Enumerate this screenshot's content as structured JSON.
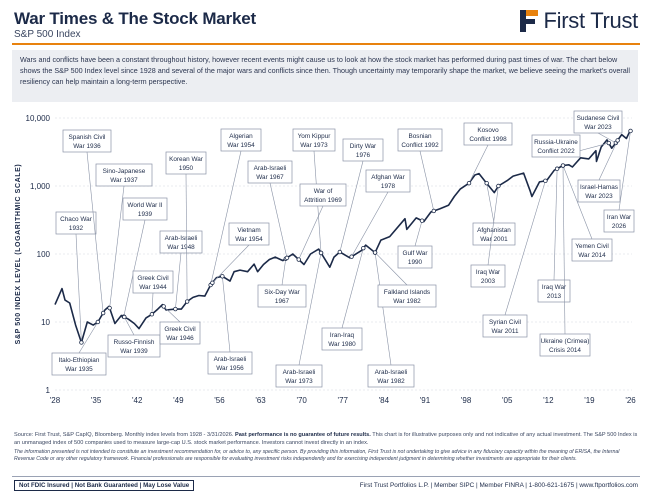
{
  "header": {
    "title": "War Times & The Stock Market",
    "subtitle": "S&P 500 Index",
    "logo_text": "First Trust"
  },
  "intro_text": "Wars and conflicts have been a constant throughout history, however recent events might cause us to look at how the stock market has performed during past times of war. The chart below shows the S&P 500 Index level since 1928 and several of the major wars and conflicts since then. Though uncertainty may temporarily shape the market, we believe seeing the market's overall resiliency can help maintain a long-term perspective.",
  "colors": {
    "navy": "#1c2a48",
    "orange": "#e8820e",
    "line": "#1c2a48",
    "callout_border": "#8a93a6",
    "gridline": "#d3d7df"
  },
  "chart_data": {
    "type": "line",
    "title": "",
    "xlabel": "",
    "ylabel": "S&P 500 INDEX LEVEL (LOGARITHMIC SCALE)",
    "yscale": "log",
    "ylim": [
      1,
      10000
    ],
    "xlim": [
      1928,
      2026.25
    ],
    "y_ticks": [
      1,
      10,
      100,
      1000,
      10000
    ],
    "y_tick_labels": [
      "1",
      "10",
      "100",
      "1,000",
      "10,000"
    ],
    "x_ticks": [
      1928,
      1935,
      1942,
      1949,
      1956,
      1963,
      1970,
      1977,
      1984,
      1991,
      1998,
      2005,
      2012,
      2019,
      2026
    ],
    "x_tick_labels": [
      "'28",
      "'35",
      "'42",
      "'49",
      "'56",
      "'63",
      "'70",
      "'77",
      "'84",
      "'91",
      "'98",
      "'05",
      "'12",
      "'19",
      "'26"
    ],
    "grid": true,
    "series": [
      {
        "name": "S&P 500 Index",
        "x": [
          1928,
          1929.2,
          1929.7,
          1930.5,
          1931.5,
          1932.5,
          1933.5,
          1934.5,
          1935.3,
          1936.5,
          1937.2,
          1938.2,
          1939.3,
          1940.5,
          1941.5,
          1942.3,
          1943.5,
          1944.5,
          1945.5,
          1946.3,
          1946.9,
          1948.5,
          1949.5,
          1950.5,
          1951.5,
          1952.5,
          1953.5,
          1954.5,
          1955.5,
          1956.5,
          1957.8,
          1958.5,
          1959.5,
          1960.8,
          1961.9,
          1962.5,
          1963.5,
          1964.5,
          1965.5,
          1966.8,
          1968.5,
          1970.4,
          1971.5,
          1972.9,
          1974.8,
          1975.5,
          1976.5,
          1978.2,
          1980.2,
          1980.9,
          1982.5,
          1983.5,
          1985,
          1987.6,
          1987.9,
          1989.5,
          1990.8,
          1992,
          1993.5,
          1995,
          1996,
          1997,
          1998.5,
          1999.5,
          2000.2,
          2001.5,
          2002.8,
          2003.5,
          2005,
          2006,
          2007.8,
          2008.9,
          2009.2,
          2010.5,
          2011.7,
          2013,
          2014.5,
          2015.5,
          2016.1,
          2017.5,
          2018.9,
          2020.1,
          2020.2,
          2021,
          2021.99,
          2022.8,
          2023.5,
          2024.5,
          2025.3,
          2025.9,
          2026.1
        ],
        "values": [
          18,
          31,
          21,
          19,
          9,
          5,
          10,
          9,
          10,
          15,
          17,
          9.5,
          12.5,
          11,
          9.5,
          8,
          11.5,
          13,
          15.5,
          18,
          15,
          15.5,
          15.5,
          20,
          23,
          24.5,
          24,
          35,
          45,
          47,
          40,
          55,
          58,
          55,
          71,
          55,
          70,
          83,
          90,
          80,
          100,
          70,
          100,
          118,
          64,
          90,
          107,
          88,
          113,
          135,
          105,
          160,
          180,
          330,
          230,
          340,
          300,
          415,
          460,
          520,
          700,
          900,
          1100,
          1450,
          1520,
          1100,
          800,
          1000,
          1200,
          1400,
          1550,
          850,
          700,
          1150,
          1200,
          1700,
          2000,
          2050,
          1900,
          2600,
          2500,
          3300,
          2300,
          3750,
          4770,
          3600,
          4300,
          5700,
          5000,
          6400,
          6500
        ]
      }
    ],
    "annotations": [
      {
        "label": "Chaco War",
        "year": "1932"
      },
      {
        "label": "Spanish Civil",
        "year": "War 1936"
      },
      {
        "label": "Sino-Japanese",
        "year": "War 1937"
      },
      {
        "label": "Italo-Ethiopian",
        "year": "War 1935"
      },
      {
        "label": "World War II",
        "year": "1939"
      },
      {
        "label": "Russo-Finnish",
        "year": "War 1939"
      },
      {
        "label": "Greek Civil",
        "year": "War 1944"
      },
      {
        "label": "Arab-Israeli",
        "year": "War 1948"
      },
      {
        "label": "Korean War",
        "year": "1950"
      },
      {
        "label": "Greek Civil",
        "year": "War 1946"
      },
      {
        "label": "Algerian",
        "year": "War 1954"
      },
      {
        "label": "Vietnam",
        "year": "War 1954"
      },
      {
        "label": "Arab-Israeli",
        "year": "War 1956"
      },
      {
        "label": "Six-Day War",
        "year": "1967"
      },
      {
        "label": "Arab-Israeli",
        "year": "War 1967"
      },
      {
        "label": "Yom Kippur",
        "year": "War 1973"
      },
      {
        "label": "War of",
        "year": "Attrition 1969"
      },
      {
        "label": "Arab-Israeli",
        "year": "War 1973"
      },
      {
        "label": "Dirty War",
        "year": "1976"
      },
      {
        "label": "Afghan War",
        "year": "1978"
      },
      {
        "label": "Iran-Iraq",
        "year": "War 1980"
      },
      {
        "label": "Arab-Israeli",
        "year": "War 1982"
      },
      {
        "label": "Falkland Islands",
        "year": "War 1982"
      },
      {
        "label": "Bosnian",
        "year": "Conflict 1992"
      },
      {
        "label": "Gulf War",
        "year": "1990"
      },
      {
        "label": "Kosovo",
        "year": "Conflict 1998"
      },
      {
        "label": "Afghanistan",
        "year": "War 2001"
      },
      {
        "label": "Iraq War",
        "year": "2003"
      },
      {
        "label": "Syrian Civil",
        "year": "War 2011"
      },
      {
        "label": "Iraq War",
        "year": "2013"
      },
      {
        "label": "Ukraine (Crimea)",
        "year": "Crisis 2014"
      },
      {
        "label": "Russia-Ukraine",
        "year": "Conflict 2022"
      },
      {
        "label": "Yemen Civil",
        "year": "War 2014"
      },
      {
        "label": "Sudanese Civil",
        "year": "War 2023"
      },
      {
        "label": "Israel-Hamas",
        "year": "War 2023"
      },
      {
        "label": "Iran War",
        "year": "2026"
      }
    ]
  },
  "footer": {
    "source_lead": "Source: First Trust, S&P CapIQ, Bloomberg. Monthly index levels from 1928 - 3/31/2026.",
    "source_bold": "Past performance is no guarantee of future results.",
    "source_tail": "This chart is for illustrative purposes only and not indicative of any actual investment. The S&P 500 Index is an unmanaged index of 500 companies used to measure large-cap U.S. stock market performance. Investors cannot invest directly in an index.",
    "disclaimer": "The information presented is not intended to constitute an investment recommendation for, or advice to, any specific person. By providing this information, First Trust is not undertaking to give advice in any fiduciary capacity within the meaning of ERISA, the Internal Revenue Code or any other regulatory framework. Financial professionals are responsible for evaluating investment risks independently and for exercising independent judgment in determining whether investments are appropriate for their clients.",
    "badge": "Not FDIC Insured | Not Bank Guaranteed | May Lose Value",
    "contact": "First Trust Portfolios L.P. | Member SIPC | Member FINRA | 1-800-621-1675 | www.ftportfolios.com"
  }
}
